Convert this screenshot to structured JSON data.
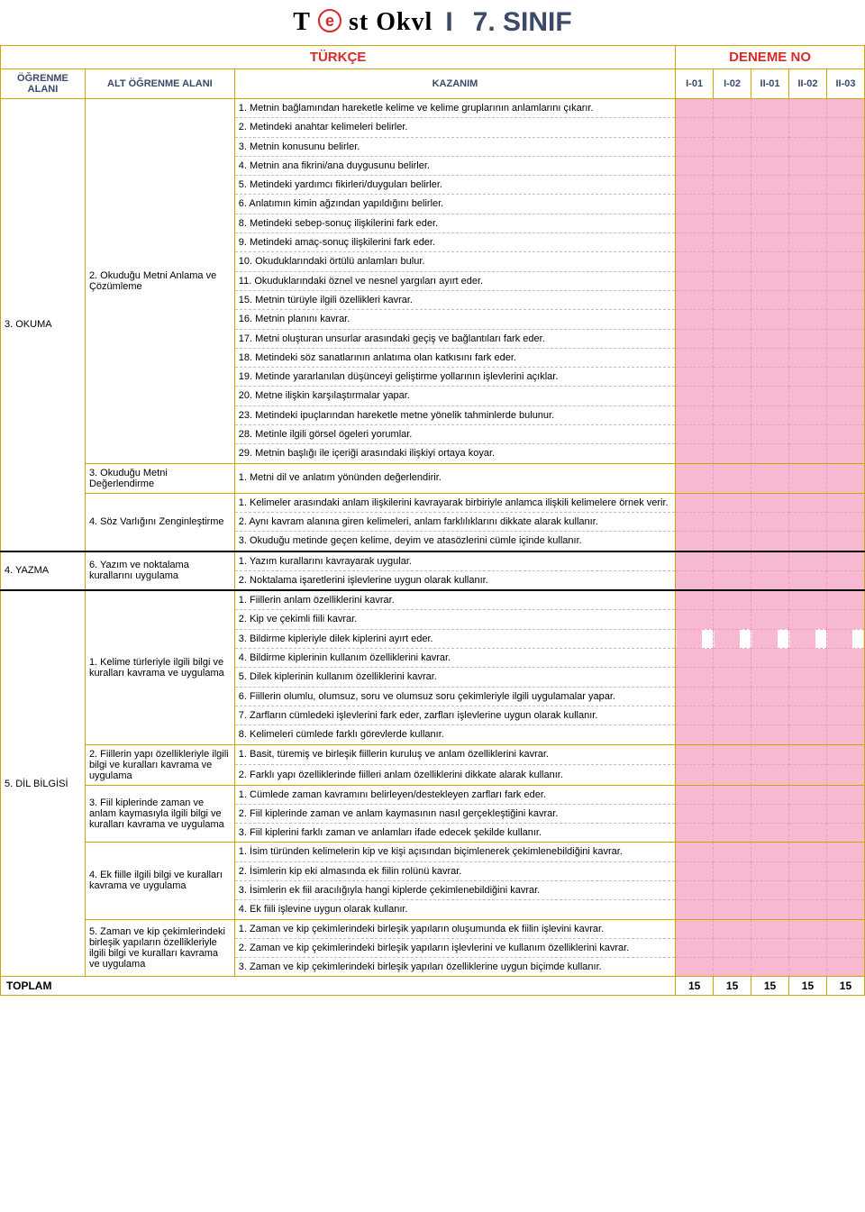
{
  "logo": {
    "left": "T",
    "e": "e",
    "right": "st Okvl",
    "grade": "7. SINIF"
  },
  "subject": {
    "name": "TÜRKÇE",
    "deneme": "DENEME NO"
  },
  "headers": {
    "ogrenme": "ÖĞRENME ALANI",
    "alt": "ALT ÖĞRENME ALANI",
    "kazanim": "KAZANIM",
    "d": [
      "I-01",
      "I-02",
      "II-01",
      "II-02",
      "II-03"
    ]
  },
  "colors": {
    "accent": "#d82a2a",
    "border": "#cfa300",
    "header_text": "#3b4a68",
    "pink": "#f7b8d2",
    "pink_border": "#f29ac0"
  },
  "areas": [
    {
      "name": "3. OKUMA",
      "alts": [
        {
          "name": "2. Okuduğu Metni Anlama ve Çözümleme",
          "rows": [
            "1. Metnin bağlamından hareketle kelime ve kelime gruplarının anlamlarını çıkarır.",
            "2. Metindeki anahtar kelimeleri belirler.",
            "3. Metnin konusunu belirler.",
            "4. Metnin ana fikrini/ana duygusunu belirler.",
            "5. Metindeki yardımcı fikirleri/duyguları belirler.",
            "6. Anlatımın kimin ağzından yapıldığını belirler.",
            "8. Metindeki sebep-sonuç ilişkilerini fark eder.",
            "9. Metindeki amaç-sonuç ilişkilerini fark eder.",
            "10. Okuduklarındaki örtülü anlamları bulur.",
            "11. Okuduklarındaki öznel ve nesnel yargıları ayırt eder.",
            "15. Metnin türüyle ilgili özellikleri kavrar.",
            "16. Metnin planını kavrar.",
            "17. Metni oluşturan unsurlar arasındaki geçiş ve bağlantıları fark eder.",
            "18. Metindeki söz sanatlarının anlatıma olan katkısını fark eder.",
            "19. Metinde yararlanılan düşünceyi geliştirme yollarının işlevlerini açıklar.",
            "20. Metne ilişkin karşılaştırmalar yapar.",
            "23. Metindeki ipuçlarından hareketle metne yönelik tahminlerde bulunur.",
            "28. Metinle ilgili görsel ögeleri yorumlar.",
            "29. Metnin başlığı ile içeriği arasındaki ilişkiyi ortaya koyar."
          ]
        },
        {
          "name": "3. Okuduğu Metni Değerlendirme",
          "rows": [
            "1. Metni dil ve anlatım yönünden değerlendirir."
          ]
        },
        {
          "name": "4. Söz Varlığını Zenginleştirme",
          "rows": [
            "1. Kelimeler arasındaki anlam ilişkilerini kavrayarak birbiriyle anlamca ilişkili kelimelere örnek verir.",
            "2. Aynı kavram alanına giren kelimeleri, anlam farklılıklarını dikkate alarak kullanır.",
            "3. Okuduğu metinde geçen kelime, deyim ve atasözlerini cümle içinde kullanır."
          ]
        }
      ]
    },
    {
      "name": "4. YAZMA",
      "alts": [
        {
          "name": "6. Yazım ve noktalama kurallarını uygulama",
          "rows": [
            "1. Yazım kurallarını kavrayarak uygular.",
            "2. Noktalama işaretlerini işlevlerine uygun olarak kullanır."
          ]
        }
      ]
    },
    {
      "name": "5. DİL BİLGİSİ",
      "alts": [
        {
          "name": "1. Kelime türleriyle ilgili bilgi ve kuralları kavrama ve uygulama",
          "rows": [
            "1. Fiillerin anlam özelliklerini kavrar.",
            "2. Kip ve çekimli fiili kavrar.",
            "3. Bildirme kipleriyle dilek kiplerini ayırt eder.",
            "4. Bildirme kiplerinin kullanım özelliklerini kavrar.",
            "5. Dilek kiplerinin kullanım özelliklerini kavrar.",
            "6. Fiillerin olumlu, olumsuz, soru ve olumsuz soru çekimleriyle ilgili uygulamalar yapar.",
            "7. Zarfların cümledeki işlevlerini fark eder, zarfları işlevlerine uygun olarak kullanır.",
            "8. Kelimeleri cümlede farklı görevlerde kullanır."
          ]
        },
        {
          "name": "2. Fiillerin yapı özellikleriyle ilgili bilgi ve kuralları kavrama ve uygulama",
          "rows": [
            "1. Basit, türemiş ve birleşik fiillerin kuruluş ve anlam özelliklerini kavrar.",
            "2. Farklı yapı özelliklerinde fiilleri anlam özelliklerini dikkate alarak kullanır."
          ]
        },
        {
          "name": "3. Fiil kiplerinde zaman ve anlam kaymasıyla ilgili bilgi ve kuralları kavrama ve uygulama",
          "rows": [
            "1. Cümlede zaman kavramını belirleyen/destekleyen zarfları fark eder.",
            "2. Fiil kiplerinde zaman ve anlam kaymasının nasıl gerçekleştiğini kavrar.",
            "3. Fiil kiplerini farklı zaman ve anlamları ifade edecek şekilde kullanır."
          ]
        },
        {
          "name": "4. Ek fiille ilgili bilgi ve kuralları kavrama ve uygulama",
          "rows": [
            "1. İsim türünden kelimelerin kip ve kişi açısından biçimlenerek çekimlenebildiğini kavrar.",
            "2. İsimlerin kip eki almasında ek fiilin rolünü kavrar.",
            "3. İsimlerin ek fiil aracılığıyla hangi kiplerde çekimlenebildiğini kavrar.",
            "4. Ek fiili işlevine uygun olarak kullanır."
          ]
        },
        {
          "name": "5. Zaman ve kip çekimlerindeki birleşik yapıların özellikleriyle ilgili bilgi ve kuralları kavrama ve uygulama",
          "rows": [
            "1. Zaman ve kip çekimlerindeki birleşik yapıların oluşumunda ek fiilin işlevini kavrar.",
            "2. Zaman ve kip çekimlerindeki birleşik yapıların işlevlerini ve kullanım özelliklerini kavrar.",
            "3. Zaman ve kip çekimlerindeki birleşik yapıları özelliklerine uygun biçimde kullanır."
          ]
        }
      ]
    }
  ],
  "half_fill_rows": [
    27
  ],
  "toplam": {
    "label": "TOPLAM",
    "values": [
      "15",
      "15",
      "15",
      "15",
      "15"
    ]
  }
}
